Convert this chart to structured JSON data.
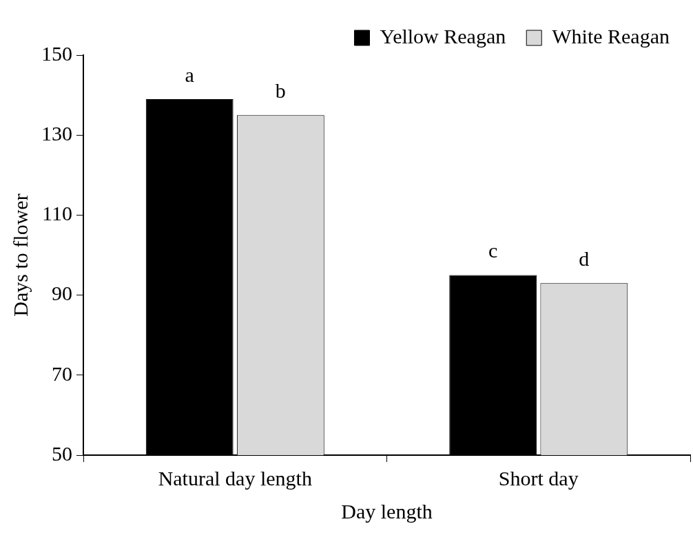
{
  "chart_data": {
    "type": "bar",
    "xlabel": "Day length",
    "ylabel": "Days to flower",
    "categories": [
      "Natural day length",
      "Short day"
    ],
    "series": [
      {
        "name": "Yellow Reagan",
        "color": "#000000",
        "values": [
          139,
          95
        ]
      },
      {
        "name": "White Reagan",
        "color": "#d9d9d9",
        "values": [
          135,
          93
        ]
      }
    ],
    "ylim": [
      50,
      150
    ],
    "yticks": [
      50,
      70,
      90,
      110,
      130,
      150
    ],
    "grid": false,
    "legend": "top right",
    "annotations": [
      {
        "text": "a",
        "x": "Natural day length",
        "y": 139
      },
      {
        "text": "b",
        "x": "Natural day length",
        "y": 135
      },
      {
        "text": "c",
        "x": "Short day",
        "y": 95
      },
      {
        "text": "d",
        "x": "Short day",
        "y": 93
      }
    ]
  }
}
